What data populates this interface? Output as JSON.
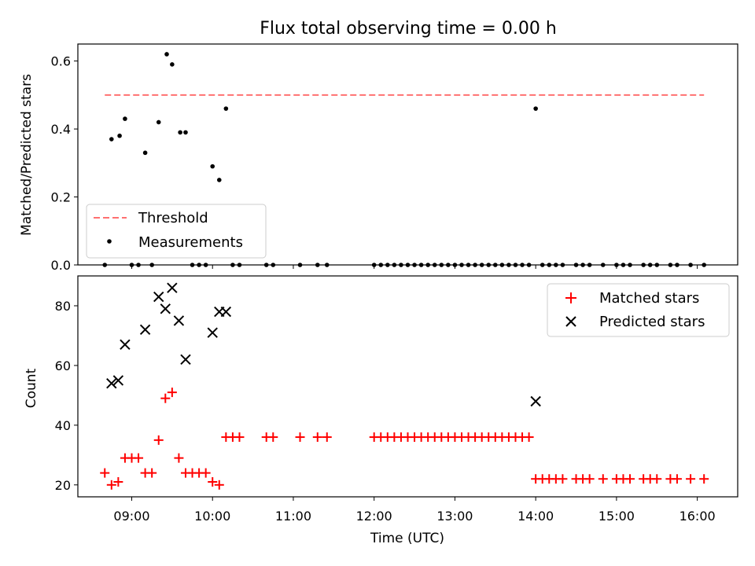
{
  "chart_data": {
    "type": "scatter",
    "title": "Flux total observing time = 0.00 h",
    "xlabel": "Time (UTC)",
    "x_ticks": [
      "09:00",
      "10:00",
      "11:00",
      "12:00",
      "13:00",
      "14:00",
      "15:00",
      "16:00"
    ],
    "xlim": [
      "08:20",
      "16:30"
    ],
    "colors": {
      "threshold": "#ff7070",
      "measurements": "#000000",
      "matched": "#ff0000",
      "predicted": "#000000"
    },
    "top_panel": {
      "ylabel": "Matched/Predicted stars",
      "ylim": [
        0,
        0.65
      ],
      "y_ticks": [
        "0.0",
        "0.2",
        "0.4",
        "0.6"
      ],
      "legend_position": "lower-left",
      "threshold": {
        "name": "Threshold",
        "value": 0.5,
        "x_range": [
          "08:40",
          "16:05"
        ]
      },
      "measurements": {
        "name": "Measurements",
        "points": [
          [
            "08:40",
            0
          ],
          [
            "08:45",
            0.37
          ],
          [
            "08:51",
            0.38
          ],
          [
            "08:55",
            0.43
          ],
          [
            "09:00",
            0
          ],
          [
            "09:05",
            0
          ],
          [
            "09:10",
            0.33
          ],
          [
            "09:15",
            0
          ],
          [
            "09:20",
            0.42
          ],
          [
            "09:26",
            0.62
          ],
          [
            "09:30",
            0.59
          ],
          [
            "09:36",
            0.39
          ],
          [
            "09:40",
            0.39
          ],
          [
            "09:45",
            0
          ],
          [
            "09:50",
            0
          ],
          [
            "09:55",
            0
          ],
          [
            "10:00",
            0.29
          ],
          [
            "10:05",
            0.25
          ],
          [
            "10:10",
            0.46
          ],
          [
            "10:15",
            0
          ],
          [
            "10:20",
            0
          ],
          [
            "10:40",
            0
          ],
          [
            "10:45",
            0
          ],
          [
            "11:05",
            0
          ],
          [
            "11:18",
            0
          ],
          [
            "11:25",
            0
          ],
          [
            "12:00",
            0
          ],
          [
            "12:05",
            0
          ],
          [
            "12:10",
            0
          ],
          [
            "12:15",
            0
          ],
          [
            "12:20",
            0
          ],
          [
            "12:25",
            0
          ],
          [
            "12:30",
            0
          ],
          [
            "12:35",
            0
          ],
          [
            "12:40",
            0
          ],
          [
            "12:45",
            0
          ],
          [
            "12:50",
            0
          ],
          [
            "12:55",
            0
          ],
          [
            "13:00",
            0
          ],
          [
            "13:05",
            0
          ],
          [
            "13:10",
            0
          ],
          [
            "13:15",
            0
          ],
          [
            "13:20",
            0
          ],
          [
            "13:25",
            0
          ],
          [
            "13:30",
            0
          ],
          [
            "13:35",
            0
          ],
          [
            "13:40",
            0
          ],
          [
            "13:45",
            0
          ],
          [
            "13:50",
            0
          ],
          [
            "13:55",
            0
          ],
          [
            "14:00",
            0.46
          ],
          [
            "14:05",
            0
          ],
          [
            "14:10",
            0
          ],
          [
            "14:15",
            0
          ],
          [
            "14:20",
            0
          ],
          [
            "14:30",
            0
          ],
          [
            "14:35",
            0
          ],
          [
            "14:40",
            0
          ],
          [
            "14:50",
            0
          ],
          [
            "15:00",
            0
          ],
          [
            "15:05",
            0
          ],
          [
            "15:10",
            0
          ],
          [
            "15:20",
            0
          ],
          [
            "15:25",
            0
          ],
          [
            "15:30",
            0
          ],
          [
            "15:40",
            0
          ],
          [
            "15:45",
            0
          ],
          [
            "15:55",
            0
          ],
          [
            "16:05",
            0
          ]
        ]
      }
    },
    "bottom_panel": {
      "ylabel": "Count",
      "ylim": [
        16,
        90
      ],
      "y_ticks": [
        "20",
        "40",
        "60",
        "80"
      ],
      "legend_position": "upper-right",
      "matched": {
        "name": "Matched stars",
        "points": [
          [
            "08:40",
            24
          ],
          [
            "08:45",
            20
          ],
          [
            "08:50",
            21
          ],
          [
            "08:55",
            29
          ],
          [
            "09:00",
            29
          ],
          [
            "09:05",
            29
          ],
          [
            "09:10",
            24
          ],
          [
            "09:15",
            24
          ],
          [
            "09:20",
            35
          ],
          [
            "09:25",
            49
          ],
          [
            "09:30",
            51
          ],
          [
            "09:35",
            29
          ],
          [
            "09:40",
            24
          ],
          [
            "09:45",
            24
          ],
          [
            "09:50",
            24
          ],
          [
            "09:55",
            24
          ],
          [
            "10:00",
            21
          ],
          [
            "10:05",
            20
          ],
          [
            "10:10",
            36
          ],
          [
            "10:15",
            36
          ],
          [
            "10:20",
            36
          ],
          [
            "10:40",
            36
          ],
          [
            "10:45",
            36
          ],
          [
            "11:05",
            36
          ],
          [
            "11:18",
            36
          ],
          [
            "11:25",
            36
          ],
          [
            "12:00",
            36
          ],
          [
            "12:05",
            36
          ],
          [
            "12:10",
            36
          ],
          [
            "12:15",
            36
          ],
          [
            "12:20",
            36
          ],
          [
            "12:25",
            36
          ],
          [
            "12:30",
            36
          ],
          [
            "12:35",
            36
          ],
          [
            "12:40",
            36
          ],
          [
            "12:45",
            36
          ],
          [
            "12:50",
            36
          ],
          [
            "12:55",
            36
          ],
          [
            "13:00",
            36
          ],
          [
            "13:05",
            36
          ],
          [
            "13:10",
            36
          ],
          [
            "13:15",
            36
          ],
          [
            "13:20",
            36
          ],
          [
            "13:25",
            36
          ],
          [
            "13:30",
            36
          ],
          [
            "13:35",
            36
          ],
          [
            "13:40",
            36
          ],
          [
            "13:45",
            36
          ],
          [
            "13:50",
            36
          ],
          [
            "13:55",
            36
          ],
          [
            "14:00",
            22
          ],
          [
            "14:05",
            22
          ],
          [
            "14:10",
            22
          ],
          [
            "14:15",
            22
          ],
          [
            "14:20",
            22
          ],
          [
            "14:30",
            22
          ],
          [
            "14:35",
            22
          ],
          [
            "14:40",
            22
          ],
          [
            "14:50",
            22
          ],
          [
            "15:00",
            22
          ],
          [
            "15:05",
            22
          ],
          [
            "15:10",
            22
          ],
          [
            "15:20",
            22
          ],
          [
            "15:25",
            22
          ],
          [
            "15:30",
            22
          ],
          [
            "15:40",
            22
          ],
          [
            "15:45",
            22
          ],
          [
            "15:55",
            22
          ],
          [
            "16:05",
            22
          ]
        ]
      },
      "predicted": {
        "name": "Predicted stars",
        "points": [
          [
            "08:45",
            54
          ],
          [
            "08:50",
            55
          ],
          [
            "08:55",
            67
          ],
          [
            "09:10",
            72
          ],
          [
            "09:20",
            83
          ],
          [
            "09:25",
            79
          ],
          [
            "09:30",
            86
          ],
          [
            "09:35",
            75
          ],
          [
            "09:40",
            62
          ],
          [
            "10:00",
            71
          ],
          [
            "10:05",
            78
          ],
          [
            "10:10",
            78
          ],
          [
            "14:00",
            48
          ]
        ]
      }
    }
  }
}
